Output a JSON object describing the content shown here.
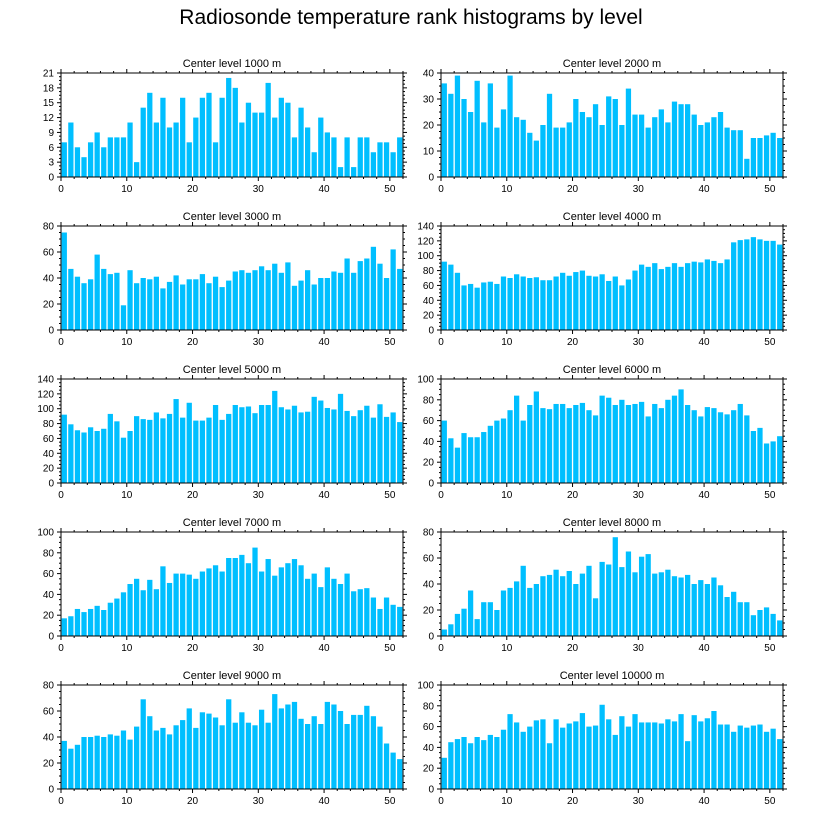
{
  "title": "Radiosonde temperature rank histograms by level",
  "colors": {
    "bar": "#00bfff",
    "axis": "#000000",
    "background": "#ffffff"
  },
  "chart_data": [
    {
      "type": "bar",
      "title": "Center level 1000 m",
      "xlabel": "",
      "ylabel": "",
      "xlim": [
        0,
        52
      ],
      "ylim": [
        0,
        21
      ],
      "xticks": [
        0,
        10,
        20,
        30,
        40,
        50
      ],
      "yticks": [
        0,
        3,
        6,
        9,
        12,
        15,
        18,
        21
      ],
      "x": [
        0,
        1,
        2,
        3,
        4,
        5,
        6,
        7,
        8,
        9,
        10,
        11,
        12,
        13,
        14,
        15,
        16,
        17,
        18,
        19,
        20,
        21,
        22,
        23,
        24,
        25,
        26,
        27,
        28,
        29,
        30,
        31,
        32,
        33,
        34,
        35,
        36,
        37,
        38,
        39,
        40,
        41,
        42,
        43,
        44,
        45,
        46,
        47,
        48,
        49,
        50,
        51
      ],
      "values": [
        7,
        11,
        6,
        4,
        7,
        9,
        6,
        8,
        8,
        8,
        11,
        3,
        14,
        17,
        11,
        16,
        10,
        11,
        16,
        7,
        12,
        16,
        17,
        7,
        16,
        20,
        18,
        11,
        15,
        13,
        13,
        19,
        12,
        16,
        15,
        8,
        14,
        10,
        5,
        12,
        9,
        8,
        2,
        8,
        2,
        8,
        8,
        5,
        7,
        7,
        5,
        8
      ]
    },
    {
      "type": "bar",
      "title": "Center level 2000 m",
      "xlabel": "",
      "ylabel": "",
      "xlim": [
        0,
        52
      ],
      "ylim": [
        0,
        40
      ],
      "xticks": [
        0,
        10,
        20,
        30,
        40,
        50
      ],
      "yticks": [
        0,
        10,
        20,
        30,
        40
      ],
      "x": [
        0,
        1,
        2,
        3,
        4,
        5,
        6,
        7,
        8,
        9,
        10,
        11,
        12,
        13,
        14,
        15,
        16,
        17,
        18,
        19,
        20,
        21,
        22,
        23,
        24,
        25,
        26,
        27,
        28,
        29,
        30,
        31,
        32,
        33,
        34,
        35,
        36,
        37,
        38,
        39,
        40,
        41,
        42,
        43,
        44,
        45,
        46,
        47,
        48,
        49,
        50,
        51
      ],
      "values": [
        36,
        32,
        39,
        30,
        25,
        37,
        21,
        36,
        19,
        26,
        39,
        23,
        22,
        17,
        14,
        20,
        32,
        19,
        19,
        21,
        30,
        25,
        23,
        28,
        20,
        31,
        30,
        20,
        34,
        24,
        24,
        19,
        23,
        26,
        21,
        29,
        28,
        28,
        24,
        20,
        21,
        23,
        25,
        19,
        18,
        18,
        7,
        15,
        15,
        16,
        17,
        15
      ]
    },
    {
      "type": "bar",
      "title": "Center level 3000 m",
      "xlabel": "",
      "ylabel": "",
      "xlim": [
        0,
        52
      ],
      "ylim": [
        0,
        80
      ],
      "xticks": [
        0,
        10,
        20,
        30,
        40,
        50
      ],
      "yticks": [
        0,
        20,
        40,
        60,
        80
      ],
      "x": [
        0,
        1,
        2,
        3,
        4,
        5,
        6,
        7,
        8,
        9,
        10,
        11,
        12,
        13,
        14,
        15,
        16,
        17,
        18,
        19,
        20,
        21,
        22,
        23,
        24,
        25,
        26,
        27,
        28,
        29,
        30,
        31,
        32,
        33,
        34,
        35,
        36,
        37,
        38,
        39,
        40,
        41,
        42,
        43,
        44,
        45,
        46,
        47,
        48,
        49,
        50,
        51
      ],
      "values": [
        75,
        47,
        41,
        36,
        39,
        58,
        47,
        43,
        44,
        19,
        46,
        36,
        40,
        39,
        41,
        32,
        37,
        42,
        35,
        39,
        39,
        43,
        36,
        41,
        33,
        38,
        45,
        46,
        44,
        46,
        49,
        46,
        51,
        44,
        52,
        34,
        38,
        46,
        35,
        40,
        40,
        45,
        44,
        55,
        44,
        53,
        55,
        64,
        51,
        40,
        62,
        47
      ]
    },
    {
      "type": "bar",
      "title": "Center level 4000 m",
      "xlabel": "",
      "ylabel": "",
      "xlim": [
        0,
        52
      ],
      "ylim": [
        0,
        140
      ],
      "xticks": [
        0,
        10,
        20,
        30,
        40,
        50
      ],
      "yticks": [
        0,
        20,
        40,
        60,
        80,
        100,
        120,
        140
      ],
      "x": [
        0,
        1,
        2,
        3,
        4,
        5,
        6,
        7,
        8,
        9,
        10,
        11,
        12,
        13,
        14,
        15,
        16,
        17,
        18,
        19,
        20,
        21,
        22,
        23,
        24,
        25,
        26,
        27,
        28,
        29,
        30,
        31,
        32,
        33,
        34,
        35,
        36,
        37,
        38,
        39,
        40,
        41,
        42,
        43,
        44,
        45,
        46,
        47,
        48,
        49,
        50,
        51
      ],
      "values": [
        92,
        88,
        77,
        60,
        62,
        57,
        64,
        65,
        62,
        72,
        70,
        75,
        72,
        70,
        71,
        67,
        67,
        72,
        77,
        73,
        78,
        80,
        73,
        72,
        75,
        66,
        72,
        60,
        68,
        80,
        88,
        85,
        90,
        82,
        85,
        90,
        85,
        90,
        92,
        91,
        95,
        93,
        90,
        95,
        118,
        121,
        122,
        125,
        122,
        120,
        120,
        115
      ]
    },
    {
      "type": "bar",
      "title": "Center level 5000 m",
      "xlabel": "",
      "ylabel": "",
      "xlim": [
        0,
        52
      ],
      "ylim": [
        0,
        140
      ],
      "xticks": [
        0,
        10,
        20,
        30,
        40,
        50
      ],
      "yticks": [
        0,
        20,
        40,
        60,
        80,
        100,
        120,
        140
      ],
      "x": [
        0,
        1,
        2,
        3,
        4,
        5,
        6,
        7,
        8,
        9,
        10,
        11,
        12,
        13,
        14,
        15,
        16,
        17,
        18,
        19,
        20,
        21,
        22,
        23,
        24,
        25,
        26,
        27,
        28,
        29,
        30,
        31,
        32,
        33,
        34,
        35,
        36,
        37,
        38,
        39,
        40,
        41,
        42,
        43,
        44,
        45,
        46,
        47,
        48,
        49,
        50,
        51
      ],
      "values": [
        92,
        79,
        71,
        68,
        75,
        70,
        73,
        93,
        83,
        61,
        70,
        90,
        86,
        85,
        95,
        87,
        93,
        113,
        88,
        108,
        84,
        84,
        88,
        105,
        85,
        93,
        105,
        102,
        103,
        94,
        105,
        105,
        124,
        102,
        99,
        104,
        95,
        96,
        116,
        111,
        101,
        99,
        120,
        97,
        90,
        98,
        104,
        88,
        106,
        89,
        95,
        82
      ]
    },
    {
      "type": "bar",
      "title": "Center level 6000 m",
      "xlabel": "",
      "ylabel": "",
      "xlim": [
        0,
        52
      ],
      "ylim": [
        0,
        100
      ],
      "xticks": [
        0,
        10,
        20,
        30,
        40,
        50
      ],
      "yticks": [
        0,
        20,
        40,
        60,
        80,
        100
      ],
      "x": [
        0,
        1,
        2,
        3,
        4,
        5,
        6,
        7,
        8,
        9,
        10,
        11,
        12,
        13,
        14,
        15,
        16,
        17,
        18,
        19,
        20,
        21,
        22,
        23,
        24,
        25,
        26,
        27,
        28,
        29,
        30,
        31,
        32,
        33,
        34,
        35,
        36,
        37,
        38,
        39,
        40,
        41,
        42,
        43,
        44,
        45,
        46,
        47,
        48,
        49,
        50,
        51
      ],
      "values": [
        60,
        43,
        34,
        48,
        44,
        44,
        49,
        55,
        60,
        62,
        70,
        84,
        60,
        75,
        88,
        72,
        71,
        76,
        76,
        72,
        75,
        77,
        70,
        65,
        84,
        82,
        75,
        80,
        75,
        76,
        78,
        64,
        76,
        72,
        80,
        84,
        90,
        75,
        70,
        64,
        73,
        72,
        68,
        66,
        70,
        76,
        65,
        50,
        53,
        38,
        40,
        45
      ]
    },
    {
      "type": "bar",
      "title": "Center level 7000 m",
      "xlabel": "",
      "ylabel": "",
      "xlim": [
        0,
        52
      ],
      "ylim": [
        0,
        100
      ],
      "xticks": [
        0,
        10,
        20,
        30,
        40,
        50
      ],
      "yticks": [
        0,
        20,
        40,
        60,
        80,
        100
      ],
      "x": [
        0,
        1,
        2,
        3,
        4,
        5,
        6,
        7,
        8,
        9,
        10,
        11,
        12,
        13,
        14,
        15,
        16,
        17,
        18,
        19,
        20,
        21,
        22,
        23,
        24,
        25,
        26,
        27,
        28,
        29,
        30,
        31,
        32,
        33,
        34,
        35,
        36,
        37,
        38,
        39,
        40,
        41,
        42,
        43,
        44,
        45,
        46,
        47,
        48,
        49,
        50,
        51
      ],
      "values": [
        17,
        19,
        26,
        23,
        26,
        29,
        25,
        32,
        36,
        42,
        50,
        55,
        44,
        54,
        45,
        67,
        51,
        60,
        60,
        59,
        55,
        62,
        65,
        68,
        62,
        75,
        75,
        78,
        70,
        85,
        62,
        74,
        58,
        66,
        70,
        74,
        68,
        55,
        60,
        47,
        66,
        55,
        50,
        60,
        43,
        45,
        46,
        37,
        26,
        37,
        30,
        28
      ]
    },
    {
      "type": "bar",
      "title": "Center level 8000 m",
      "xlabel": "",
      "ylabel": "",
      "xlim": [
        0,
        52
      ],
      "ylim": [
        0,
        80
      ],
      "xticks": [
        0,
        10,
        20,
        30,
        40,
        50
      ],
      "yticks": [
        0,
        20,
        40,
        60,
        80
      ],
      "x": [
        0,
        1,
        2,
        3,
        4,
        5,
        6,
        7,
        8,
        9,
        10,
        11,
        12,
        13,
        14,
        15,
        16,
        17,
        18,
        19,
        20,
        21,
        22,
        23,
        24,
        25,
        26,
        27,
        28,
        29,
        30,
        31,
        32,
        33,
        34,
        35,
        36,
        37,
        38,
        39,
        40,
        41,
        42,
        43,
        44,
        45,
        46,
        47,
        48,
        49,
        50,
        51
      ],
      "values": [
        5,
        9,
        17,
        21,
        35,
        13,
        26,
        26,
        20,
        35,
        37,
        42,
        54,
        37,
        40,
        46,
        47,
        51,
        46,
        50,
        40,
        48,
        54,
        29,
        57,
        55,
        76,
        53,
        65,
        49,
        61,
        63,
        48,
        49,
        51,
        46,
        45,
        47,
        40,
        43,
        40,
        45,
        39,
        30,
        34,
        26,
        26,
        16,
        20,
        22,
        17,
        12
      ]
    },
    {
      "type": "bar",
      "title": "Center level 9000 m",
      "xlabel": "",
      "ylabel": "",
      "xlim": [
        0,
        52
      ],
      "ylim": [
        0,
        80
      ],
      "xticks": [
        0,
        10,
        20,
        30,
        40,
        50
      ],
      "yticks": [
        0,
        20,
        40,
        60,
        80
      ],
      "x": [
        0,
        1,
        2,
        3,
        4,
        5,
        6,
        7,
        8,
        9,
        10,
        11,
        12,
        13,
        14,
        15,
        16,
        17,
        18,
        19,
        20,
        21,
        22,
        23,
        24,
        25,
        26,
        27,
        28,
        29,
        30,
        31,
        32,
        33,
        34,
        35,
        36,
        37,
        38,
        39,
        40,
        41,
        42,
        43,
        44,
        45,
        46,
        47,
        48,
        49,
        50,
        51
      ],
      "values": [
        37,
        31,
        34,
        40,
        40,
        41,
        40,
        42,
        41,
        45,
        38,
        48,
        69,
        56,
        45,
        47,
        42,
        49,
        53,
        62,
        47,
        59,
        58,
        55,
        49,
        69,
        51,
        59,
        51,
        49,
        61,
        51,
        73,
        62,
        65,
        67,
        54,
        50,
        56,
        50,
        67,
        65,
        60,
        50,
        57,
        57,
        64,
        56,
        48,
        35,
        28,
        23
      ]
    },
    {
      "type": "bar",
      "title": "Center level 10000 m",
      "xlabel": "",
      "ylabel": "",
      "xlim": [
        0,
        52
      ],
      "ylim": [
        0,
        100
      ],
      "xticks": [
        0,
        10,
        20,
        30,
        40,
        50
      ],
      "yticks": [
        0,
        20,
        40,
        60,
        80,
        100
      ],
      "x": [
        0,
        1,
        2,
        3,
        4,
        5,
        6,
        7,
        8,
        9,
        10,
        11,
        12,
        13,
        14,
        15,
        16,
        17,
        18,
        19,
        20,
        21,
        22,
        23,
        24,
        25,
        26,
        27,
        28,
        29,
        30,
        31,
        32,
        33,
        34,
        35,
        36,
        37,
        38,
        39,
        40,
        41,
        42,
        43,
        44,
        45,
        46,
        47,
        48,
        49,
        50,
        51
      ],
      "values": [
        30,
        45,
        48,
        50,
        44,
        50,
        47,
        52,
        50,
        57,
        72,
        64,
        55,
        60,
        66,
        67,
        44,
        67,
        59,
        63,
        65,
        73,
        60,
        61,
        81,
        67,
        52,
        70,
        60,
        72,
        64,
        64,
        64,
        63,
        67,
        65,
        72,
        46,
        71,
        65,
        68,
        75,
        62,
        62,
        55,
        61,
        59,
        61,
        62,
        55,
        58,
        48
      ]
    }
  ]
}
